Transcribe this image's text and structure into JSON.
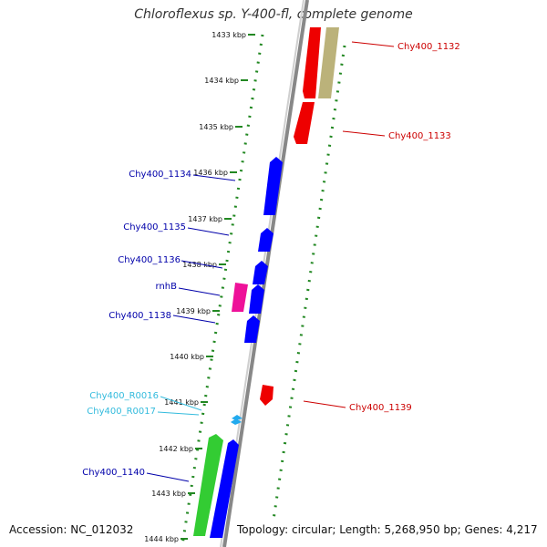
{
  "title": "Chloroflexus sp. Y-400-fl, complete genome",
  "accession": "Accession: NC_012032",
  "topology": "Topology: circular; Length: 5,268,950 bp; Genes: 4,217",
  "ticks": [
    "1433 kbp",
    "1434 kbp",
    "1435 kbp",
    "1436 kbp",
    "1437 kbp",
    "1438 kbp",
    "1439 kbp",
    "1440 kbp",
    "1441 kbp",
    "1442 kbp",
    "1443 kbp",
    "1444 kbp"
  ],
  "genes": [
    {
      "label": "Chy400_1132",
      "color": "#cc0000",
      "strand": "reverse"
    },
    {
      "label": "Chy400_1133",
      "color": "#cc0000",
      "strand": "reverse"
    },
    {
      "label": "Chy400_1134",
      "color": "#0000aa",
      "strand": "forward"
    },
    {
      "label": "Chy400_1135",
      "color": "#0000aa",
      "strand": "forward"
    },
    {
      "label": "Chy400_1136",
      "color": "#0000aa",
      "strand": "forward"
    },
    {
      "label": "rnhB",
      "color": "#0000aa",
      "strand": "forward"
    },
    {
      "label": "Chy400_1138",
      "color": "#0000aa",
      "strand": "forward"
    },
    {
      "label": "Chy400_R0016",
      "color": "#33bbdd",
      "strand": "forward"
    },
    {
      "label": "Chy400_R0017",
      "color": "#33bbdd",
      "strand": "forward"
    },
    {
      "label": "Chy400_1139",
      "color": "#cc0000",
      "strand": "reverse"
    },
    {
      "label": "Chy400_1140",
      "color": "#0000aa",
      "strand": "forward"
    }
  ],
  "colors": {
    "forward_gene": "#0000ff",
    "reverse_gene": "#ee0000",
    "rrna": "#ee1199",
    "trna": "#22aaee",
    "pseudo": "#bbb27a",
    "highlight": "#33cc33",
    "axis": "#888888",
    "tick": "#228822"
  }
}
